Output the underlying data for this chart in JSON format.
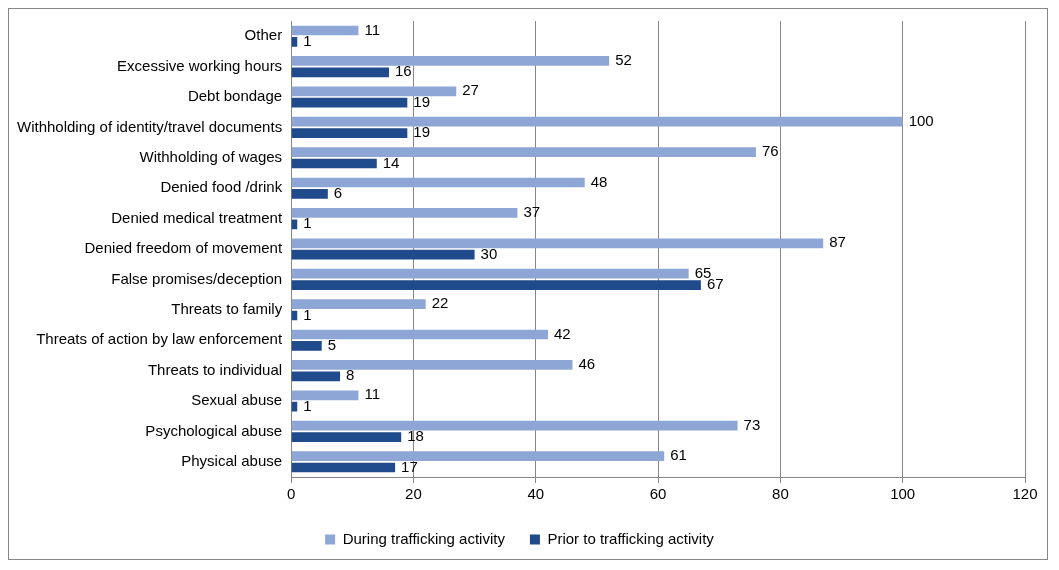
{
  "chart_data": {
    "type": "bar",
    "orientation": "horizontal",
    "categories": [
      "Other",
      "Excessive working hours",
      "Debt bondage",
      "Withholding of identity/travel documents",
      "Withholding of wages",
      "Denied food /drink",
      "Denied medical treatment",
      "Denied freedom of movement",
      "False promises/deception",
      "Threats to family",
      "Threats of action by law enforcement",
      "Threats to individual",
      "Sexual abuse",
      "Psychological abuse",
      "Physical abuse"
    ],
    "series": [
      {
        "name": "During trafficking activity",
        "color": "#8ea6d6",
        "values": [
          11,
          52,
          27,
          100,
          76,
          48,
          37,
          87,
          65,
          22,
          42,
          46,
          11,
          73,
          61
        ]
      },
      {
        "name": "Prior to trafficking activity",
        "color": "#1f4a8c",
        "values": [
          1,
          16,
          19,
          19,
          14,
          6,
          1,
          30,
          67,
          1,
          5,
          8,
          1,
          18,
          17
        ]
      }
    ],
    "xlim": [
      0,
      120
    ],
    "xticks": [
      0,
      20,
      40,
      60,
      80,
      100,
      120
    ],
    "grid": "x",
    "legend": "bottom",
    "data_labels": true
  }
}
